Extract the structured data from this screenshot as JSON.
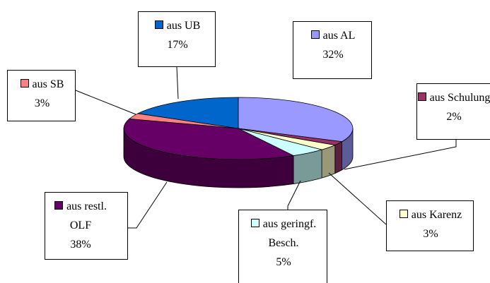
{
  "chart_data": {
    "type": "pie",
    "categories": [
      "aus AL",
      "aus Schulung",
      "aus Karenz",
      "aus geringf. Besch.",
      "aus restl. OLF",
      "aus SB",
      "aus UB"
    ],
    "values": [
      32,
      2,
      3,
      5,
      38,
      3,
      17
    ],
    "value_labels": [
      "32%",
      "2%",
      "3%",
      "5%",
      "38%",
      "3%",
      "17%"
    ],
    "colors": [
      "#9999ff",
      "#993366",
      "#ffffcc",
      "#ccffff",
      "#660066",
      "#ff8080",
      "#0066cc"
    ]
  }
}
